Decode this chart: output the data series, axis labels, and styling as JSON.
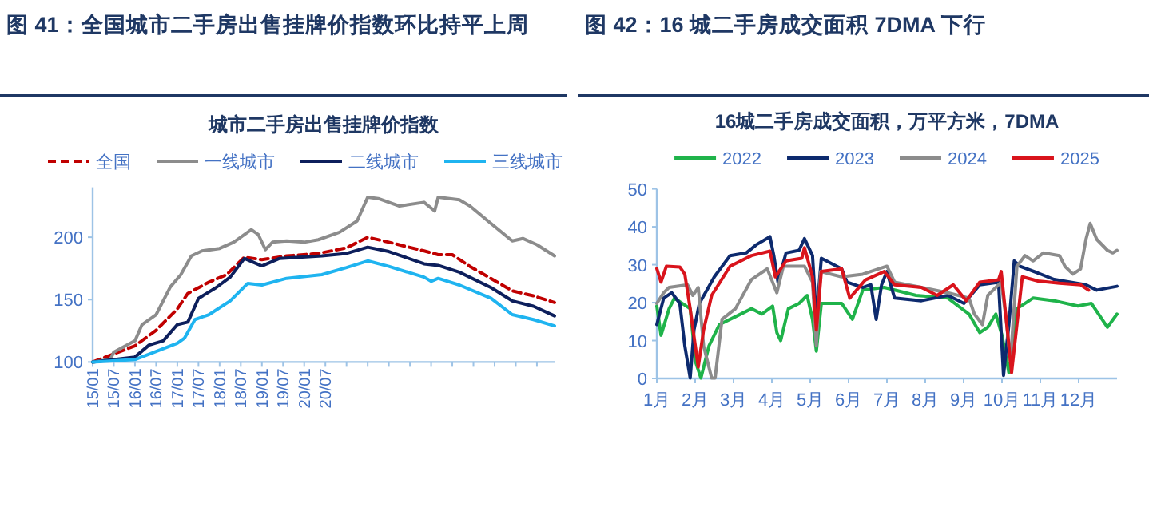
{
  "chart_data": [
    {
      "type": "line",
      "title": "图 41：全国城市二手房出售挂牌价指数环比持平上周",
      "subtitle": "城市二手房出售挂牌价指数",
      "legend": "top",
      "grid": false,
      "xlim": [
        "2015-01",
        "2025-12"
      ],
      "xticks": [
        {
          "value": "2015-01",
          "label": "15/01"
        },
        {
          "value": "2015-07",
          "label": "15/07"
        },
        {
          "value": "2016-01",
          "label": "16/01"
        },
        {
          "value": "2016-07",
          "label": "16/07"
        },
        {
          "value": "2017-01",
          "label": "17/01"
        },
        {
          "value": "2017-07",
          "label": "17/07"
        },
        {
          "value": "2018-01",
          "label": "18/01"
        },
        {
          "value": "2018-07",
          "label": "18/07"
        },
        {
          "value": "2019-01",
          "label": "19/01"
        },
        {
          "value": "2019-07",
          "label": "19/07"
        },
        {
          "value": "2020-01",
          "label": "20/01"
        },
        {
          "value": "2020-07",
          "label": "20/07"
        },
        {
          "value": "2021-01",
          "label": null
        },
        {
          "value": "2021-07",
          "label": null
        },
        {
          "value": "2022-01",
          "label": null
        },
        {
          "value": "2022-07",
          "label": null
        },
        {
          "value": "2023-01",
          "label": null
        },
        {
          "value": "2023-07",
          "label": null
        },
        {
          "value": "2024-01",
          "label": null
        },
        {
          "value": "2024-07",
          "label": null
        },
        {
          "value": "2025-01",
          "label": null
        },
        {
          "value": "2025-07",
          "label": null
        }
      ],
      "ylim": [
        100,
        240
      ],
      "yticks": [
        100,
        150,
        200
      ],
      "x": [
        "2015-01",
        "2015-06",
        "2015-07",
        "2016-01",
        "2016-03",
        "2016-07",
        "2016-11",
        "2017-02",
        "2017-05",
        "2017-08",
        "2018-01",
        "2018-05",
        "2018-10",
        "2018-12",
        "2019-02",
        "2019-04",
        "2019-08",
        "2020-01",
        "2020-05",
        "2020-11",
        "2021-04",
        "2021-07",
        "2021-10",
        "2022-04",
        "2022-11",
        "2023-02",
        "2023-03",
        "2023-09",
        "2023-12",
        "2024-06",
        "2024-12",
        "2025-03",
        "2025-07",
        "2025-12"
      ],
      "series": [
        {
          "name": "全国",
          "color": "#c00000",
          "line_style": "dashed",
          "x": [
            "2015-01",
            "2016-01",
            "2016-07",
            "2017-01",
            "2017-04",
            "2017-10",
            "2018-03",
            "2018-08",
            "2019-01",
            "2019-08",
            "2020-05",
            "2021-01",
            "2021-07",
            "2022-01",
            "2022-11",
            "2023-03",
            "2023-07",
            "2023-12",
            "2024-12",
            "2025-06",
            "2025-12"
          ],
          "values": [
            100,
            113,
            125.5,
            142.5,
            155,
            164,
            170,
            184,
            182,
            185,
            187,
            191.5,
            200,
            196,
            189,
            186,
            186,
            176.6,
            157,
            153,
            147.7
          ]
        },
        {
          "name": "一线城市",
          "color": "#8c8c8c",
          "values": [
            100,
            102,
            108,
            117,
            130,
            138,
            160,
            170,
            185,
            189,
            191,
            196,
            206,
            202,
            190,
            196,
            197,
            196,
            198,
            204,
            213,
            232,
            231,
            225,
            228,
            221,
            232,
            230,
            225,
            211,
            197,
            199,
            194,
            185
          ]
        },
        {
          "name": "二线城市",
          "color": "#0d1f5c",
          "x": [
            "2015-01",
            "2016-01",
            "2016-05",
            "2016-09",
            "2017-01",
            "2017-04",
            "2017-07",
            "2017-12",
            "2018-04",
            "2018-08",
            "2019-01",
            "2019-06",
            "2020-06",
            "2021-01",
            "2021-07",
            "2022-01",
            "2022-11",
            "2023-03",
            "2023-09",
            "2024-06",
            "2024-12",
            "2025-06",
            "2025-12"
          ],
          "values": [
            100,
            104,
            113.6,
            117,
            130,
            132,
            151,
            159.6,
            168,
            183,
            177,
            183,
            185,
            187,
            192,
            188.5,
            178.7,
            177.4,
            172,
            159.6,
            149,
            144.7,
            137
          ]
        },
        {
          "name": "三线城市",
          "color": "#1fb4f0",
          "x": [
            "2015-01",
            "2016-01",
            "2016-07",
            "2017-01",
            "2017-03",
            "2017-06",
            "2017-10",
            "2018-04",
            "2018-09",
            "2019-01",
            "2019-08",
            "2020-06",
            "2021-01",
            "2021-07",
            "2022-01",
            "2022-11",
            "2023-01",
            "2023-03",
            "2023-09",
            "2024-06",
            "2024-12",
            "2025-06",
            "2025-12"
          ],
          "values": [
            100,
            102,
            108.5,
            115,
            119,
            134,
            138,
            149,
            163,
            161.7,
            167,
            170,
            175.7,
            181,
            176.6,
            168,
            164.7,
            167,
            161.7,
            151,
            138,
            134,
            129
          ]
        }
      ]
    },
    {
      "type": "line",
      "title": "图 42：16 城二手房成交面积 7DMA 下行",
      "subtitle": "16城二手房成交面积，万平方米，7DMA",
      "legend": "top",
      "grid": false,
      "xlim": [
        1,
        13
      ],
      "xticks": [
        {
          "value": 1,
          "label": "1月"
        },
        {
          "value": 2,
          "label": "2月"
        },
        {
          "value": 3,
          "label": "3月"
        },
        {
          "value": 4,
          "label": "4月"
        },
        {
          "value": 5,
          "label": "5月"
        },
        {
          "value": 6,
          "label": "6月"
        },
        {
          "value": 7,
          "label": "7月"
        },
        {
          "value": 8,
          "label": "8月"
        },
        {
          "value": 9,
          "label": "9月"
        },
        {
          "value": 10,
          "label": "10月"
        },
        {
          "value": 11,
          "label": "11月"
        },
        {
          "value": 12,
          "label": "12月"
        }
      ],
      "ylim": [
        0,
        50
      ],
      "yticks": [
        0,
        10,
        20,
        30,
        40,
        50
      ],
      "series": [
        {
          "name": "2022",
          "color": "#1fb34a",
          "x": [
            1,
            1.11,
            1.32,
            1.46,
            1.66,
            1.87,
            2.01,
            2.15,
            2.36,
            2.63,
            3.05,
            3.47,
            3.74,
            4.02,
            4.13,
            4.23,
            4.43,
            4.71,
            4.92,
            5.06,
            5.16,
            5.29,
            5.82,
            6.1,
            6.37,
            6.93,
            7.76,
            8.59,
            9.14,
            9.42,
            9.63,
            9.84,
            10.0,
            10.18,
            10.39,
            10.81,
            11.36,
            11.98,
            12.33,
            12.61,
            12.75,
            13.0
          ],
          "values": [
            19.1,
            11.4,
            18.4,
            21.2,
            19.8,
            18.4,
            4.4,
            0.1,
            8.6,
            14.2,
            16.3,
            18.4,
            17,
            19.1,
            12.1,
            10,
            18.4,
            19.8,
            21.9,
            15.6,
            7.2,
            19.8,
            19.8,
            15.6,
            23.3,
            24,
            21.9,
            21.2,
            17,
            12.1,
            13.5,
            17,
            11.4,
            1.5,
            18.4,
            21.2,
            20.5,
            19.1,
            19.8,
            15.6,
            13.5,
            17
          ]
        },
        {
          "name": "2023",
          "color": "#0d2a6e",
          "x": [
            1,
            1.18,
            1.39,
            1.6,
            1.73,
            1.87,
            1.97,
            2.11,
            2.5,
            2.91,
            3.33,
            3.6,
            3.95,
            4.05,
            4.16,
            4.37,
            4.71,
            4.85,
            5.06,
            5.16,
            5.29,
            5.82,
            5.96,
            6.37,
            6.58,
            6.72,
            6.86,
            7.0,
            7.2,
            7.9,
            8.59,
            9.01,
            9.42,
            9.91,
            10.04,
            10.18,
            10.32,
            10.46,
            10.94,
            11.36,
            12.19,
            12.47,
            13.0
          ],
          "values": [
            14.2,
            21.2,
            22.6,
            19.8,
            8.6,
            0.1,
            12.8,
            19.8,
            26.8,
            32.4,
            33.1,
            35.3,
            37.4,
            32.4,
            25.4,
            33.1,
            33.8,
            36.9,
            32.4,
            15.6,
            31.7,
            28.9,
            25.4,
            24,
            24.7,
            15.6,
            24.7,
            28.2,
            21.2,
            20.5,
            21.9,
            19.8,
            24.7,
            25.4,
            0.8,
            14.2,
            31,
            29.6,
            27.8,
            26.1,
            24.7,
            23.3,
            24.3
          ]
        },
        {
          "name": "2024",
          "color": "#8c8c8c",
          "x": [
            1,
            1.18,
            1.32,
            1.8,
            1.94,
            2.08,
            2.22,
            2.43,
            2.52,
            2.7,
            3.05,
            3.47,
            3.88,
            4.13,
            4.3,
            4.85,
            5.06,
            5.16,
            5.27,
            5.82,
            6.37,
            7.0,
            7.2,
            7.9,
            8.59,
            9.14,
            9.28,
            9.49,
            9.63,
            9.98,
            10.11,
            10.22,
            10.39,
            10.6,
            10.81,
            11.08,
            11.5,
            11.64,
            11.85,
            12.05,
            12.19,
            12.3,
            12.47,
            12.75,
            12.89,
            13.0
          ],
          "values": [
            19.8,
            22.6,
            24,
            24.7,
            21.9,
            24,
            8.6,
            0.1,
            0.1,
            15.6,
            18.4,
            26.1,
            28.9,
            22.6,
            29.6,
            29.6,
            25.4,
            8.6,
            28.2,
            26.8,
            27.5,
            29.6,
            25.4,
            24,
            22.6,
            21.2,
            17,
            14.2,
            21.9,
            25.4,
            15.6,
            4.4,
            29.6,
            32.4,
            31,
            33.1,
            32.4,
            29.6,
            27.5,
            28.9,
            36.7,
            40.9,
            36.7,
            33.8,
            33.1,
            33.8
          ]
        },
        {
          "name": "2025",
          "color": "#d9141c",
          "x": [
            1,
            1.11,
            1.25,
            1.6,
            1.73,
            1.87,
            2.08,
            2.22,
            2.43,
            2.91,
            3.47,
            3.95,
            4.09,
            4.37,
            4.78,
            4.85,
            5.06,
            5.16,
            5.29,
            5.82,
            6.03,
            6.44,
            6.93,
            7.2,
            7.9,
            8.31,
            8.73,
            9.07,
            9.42,
            9.91,
            9.98,
            10.14,
            10.25,
            10.39,
            10.53,
            10.94,
            11.5,
            12.05,
            12.26
          ],
          "values": [
            29,
            25.4,
            29.6,
            29.4,
            27.5,
            18.4,
            3,
            12.8,
            21.9,
            29.6,
            32.4,
            33.6,
            26.8,
            31,
            31.7,
            34.5,
            26.8,
            12.8,
            28.2,
            28.9,
            21.2,
            26,
            28.2,
            24.7,
            24,
            21.9,
            24.7,
            20.5,
            25.4,
            26,
            28.2,
            12.8,
            1.5,
            14.2,
            26.8,
            25.7,
            25.1,
            24.7,
            23.3
          ]
        }
      ]
    }
  ]
}
